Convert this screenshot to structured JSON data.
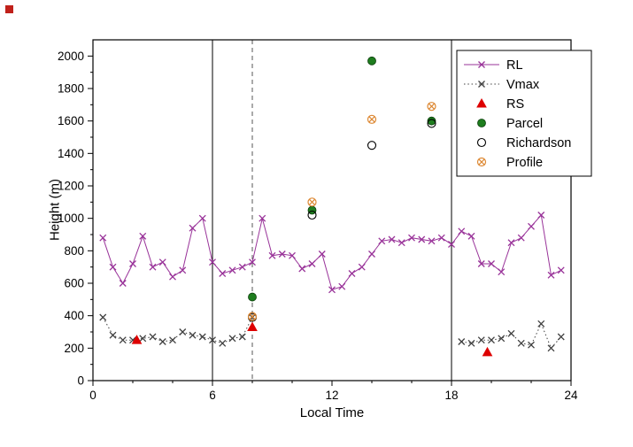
{
  "figure": {
    "background": "#ffffff",
    "corner_marker_color": "#c0201a"
  },
  "chart_data": {
    "type": "line",
    "title": "",
    "xlabel": "Local Time",
    "ylabel": "Height (m)",
    "xlim": [
      0,
      24
    ],
    "ylim": [
      0,
      2100
    ],
    "x_major_ticks": [
      0,
      6,
      12,
      18,
      24
    ],
    "x_minor_step": 2,
    "y_tick_max": 2000,
    "y_major_step": 200,
    "y_minor_step": 100,
    "grid": false,
    "legend_position": "top-right",
    "vlines": [
      {
        "x": 6,
        "style": "solid",
        "color": "#000000"
      },
      {
        "x": 18,
        "style": "solid",
        "color": "#000000"
      },
      {
        "x": 8,
        "style": "dashed",
        "color": "#555555"
      }
    ],
    "series": [
      {
        "name": "RL",
        "kind": "line",
        "marker": "x",
        "color": "#993399",
        "dash": "solid",
        "segments": [
          [
            [
              0.5,
              880
            ],
            [
              1,
              700
            ],
            [
              1.5,
              600
            ],
            [
              2,
              720
            ],
            [
              2.5,
              890
            ],
            [
              3,
              700
            ],
            [
              3.5,
              730
            ],
            [
              4,
              640
            ],
            [
              4.5,
              680
            ],
            [
              5,
              940
            ],
            [
              5.5,
              1000
            ],
            [
              6,
              730
            ],
            [
              6.5,
              660
            ],
            [
              7,
              680
            ],
            [
              7.5,
              700
            ],
            [
              8,
              730
            ],
            [
              8.5,
              1000
            ],
            [
              9,
              770
            ],
            [
              9.5,
              780
            ],
            [
              10,
              770
            ],
            [
              10.5,
              690
            ],
            [
              11,
              720
            ],
            [
              11.5,
              780
            ],
            [
              12,
              560
            ],
            [
              12.5,
              580
            ],
            [
              13,
              660
            ],
            [
              13.5,
              700
            ],
            [
              14,
              780
            ],
            [
              14.5,
              860
            ],
            [
              15,
              870
            ],
            [
              15.5,
              850
            ],
            [
              16,
              880
            ],
            [
              16.5,
              870
            ],
            [
              17,
              860
            ],
            [
              17.5,
              880
            ],
            [
              18,
              840
            ],
            [
              18.5,
              920
            ],
            [
              19,
              890
            ],
            [
              19.5,
              720
            ],
            [
              20,
              720
            ],
            [
              20.5,
              670
            ],
            [
              21,
              850
            ],
            [
              21.5,
              880
            ],
            [
              22,
              950
            ],
            [
              22.5,
              1020
            ],
            [
              23,
              650
            ],
            [
              23.5,
              680
            ]
          ]
        ]
      },
      {
        "name": "Vmax",
        "kind": "line",
        "marker": "x",
        "color": "#404040",
        "dash": "dotted",
        "segments": [
          [
            [
              0.5,
              390
            ],
            [
              1,
              280
            ],
            [
              1.5,
              250
            ],
            [
              2,
              250
            ],
            [
              2.5,
              260
            ],
            [
              3,
              270
            ],
            [
              3.5,
              240
            ],
            [
              4,
              250
            ],
            [
              4.5,
              300
            ],
            [
              5,
              280
            ],
            [
              5.5,
              270
            ],
            [
              6,
              250
            ],
            [
              6.5,
              230
            ],
            [
              7,
              260
            ],
            [
              7.5,
              270
            ],
            [
              8,
              390
            ]
          ],
          [
            [
              18.5,
              240
            ],
            [
              19,
              230
            ],
            [
              19.5,
              250
            ],
            [
              20,
              250
            ],
            [
              20.5,
              260
            ],
            [
              21,
              290
            ],
            [
              21.5,
              230
            ],
            [
              22,
              220
            ],
            [
              22.5,
              350
            ],
            [
              23,
              200
            ],
            [
              23.5,
              270
            ]
          ]
        ]
      },
      {
        "name": "RS",
        "kind": "scatter",
        "marker": "triangle",
        "color": "#dd0000",
        "segments": [
          [
            [
              2.2,
              250
            ],
            [
              8,
              330
            ],
            [
              19.8,
              175
            ]
          ]
        ]
      },
      {
        "name": "Parcel",
        "kind": "scatter",
        "marker": "circle-filled",
        "color": "#1e7d1e",
        "segments": [
          [
            [
              8,
              515
            ],
            [
              11,
              1050
            ],
            [
              14,
              1970
            ],
            [
              17,
              1600
            ]
          ]
        ]
      },
      {
        "name": "Richardson",
        "kind": "scatter",
        "marker": "circle-open",
        "color": "#000000",
        "segments": [
          [
            [
              8,
              390
            ],
            [
              11,
              1020
            ],
            [
              14,
              1450
            ],
            [
              17,
              1585
            ]
          ]
        ]
      },
      {
        "name": "Profile",
        "kind": "scatter",
        "marker": "circle-cross",
        "color": "#dd8833",
        "segments": [
          [
            [
              8,
              395
            ],
            [
              11,
              1100
            ],
            [
              14,
              1610
            ],
            [
              17,
              1690
            ]
          ]
        ]
      }
    ]
  }
}
